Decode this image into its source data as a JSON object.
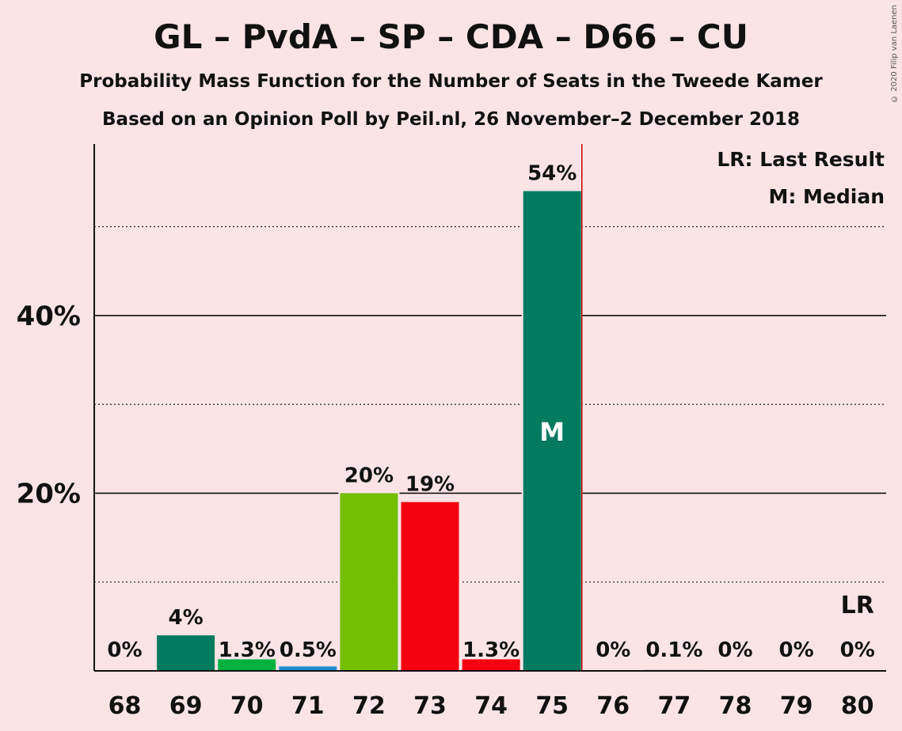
{
  "title": "GL – PvdA – SP – CDA – D66 – CU",
  "subtitle": "Probability Mass Function for the Number of Seats in the Tweede Kamer",
  "subtitle2": "Based on an Opinion Poll by Peil.nl, 26 November–2 December 2018",
  "copyright": "© 2020 Filip van Laenen",
  "legend": {
    "last_result": "LR: Last Result",
    "median": "M: Median"
  },
  "median_marker": "M",
  "last_result_marker": "LR",
  "colors": {
    "background": "#fce4e6",
    "GL": "#007b5f",
    "PvdA": "#00b140",
    "D66": "#1f8fd0",
    "CDA": "#73bf00",
    "SP": "#f5000f",
    "last_result_line": "#c00000"
  },
  "chart_data": {
    "type": "bar",
    "categories": [
      "68",
      "69",
      "70",
      "71",
      "72",
      "73",
      "74",
      "75",
      "76",
      "77",
      "78",
      "79",
      "80"
    ],
    "values": [
      0,
      4,
      1.3,
      0.5,
      20,
      19,
      1.3,
      54,
      0,
      0.1,
      0,
      0,
      0
    ],
    "data_labels": [
      "0%",
      "4%",
      "1.3%",
      "0.5%",
      "20%",
      "19%",
      "1.3%",
      "54%",
      "0%",
      "0.1%",
      "0%",
      "0%",
      "0%"
    ],
    "bar_colors": [
      "#007b5f",
      "#007b5f",
      "#00b140",
      "#1f8fd0",
      "#73bf00",
      "#f5000f",
      "#f5000f",
      "#007b5f",
      "#007b5f",
      "#007b5f",
      "#007b5f",
      "#007b5f",
      "#007b5f"
    ],
    "ylim": [
      0,
      59
    ],
    "yticks": [
      20,
      40
    ],
    "ytick_labels": [
      "20%",
      "40%"
    ],
    "minor_gridlines": [
      10,
      30,
      50
    ],
    "median_seat": "75",
    "last_result_seat": "80",
    "last_result_line_after": "75",
    "legend_position": "top-right"
  }
}
